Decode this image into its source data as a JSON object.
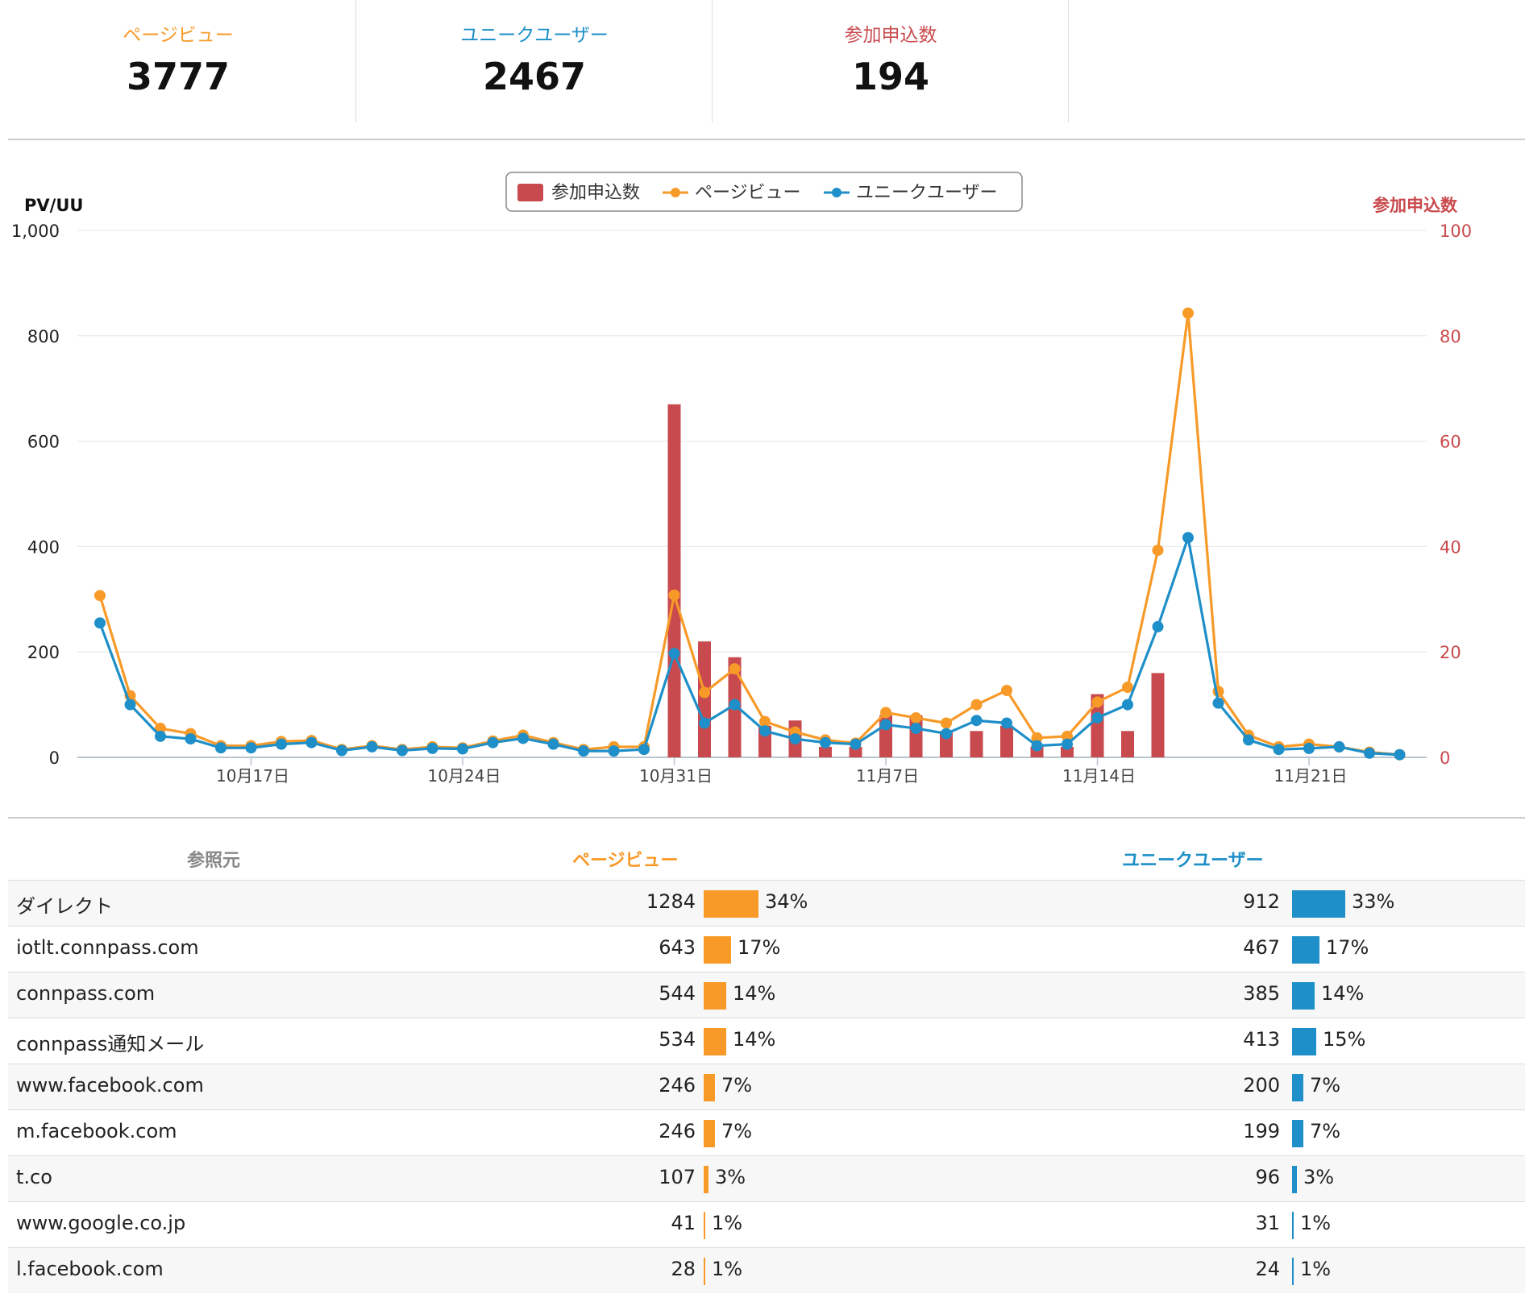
{
  "colors": {
    "pv": "#f79a28",
    "uu": "#1e8fc8",
    "entry": "#c94a4e"
  },
  "stats": [
    {
      "label": "ページビュー",
      "value": "3777",
      "color": "#f79a28"
    },
    {
      "label": "ユニークユーザー",
      "value": "2467",
      "color": "#1e8fc8"
    },
    {
      "label": "参加申込数",
      "value": "194",
      "color": "#c94a4e"
    }
  ],
  "chart_data": {
    "type": "line",
    "left_axis_title": "PV/UU",
    "right_axis_title": "参加申込数",
    "left_ylim": [
      0,
      1000
    ],
    "right_ylim": [
      0,
      100
    ],
    "left_ticks": [
      "0",
      "200",
      "400",
      "600",
      "800",
      "1,000"
    ],
    "right_ticks": [
      "0",
      "20",
      "40",
      "60",
      "80",
      "100"
    ],
    "x_tick_labels": [
      "10月17日",
      "10月24日",
      "10月31日",
      "11月7日",
      "11月14日",
      "11月21日"
    ],
    "x_tick_index": [
      5,
      12,
      19,
      26,
      33,
      40
    ],
    "legend_position": "top-center",
    "grid": true,
    "series": [
      {
        "name": "参加申込数",
        "kind": "bar",
        "axis": "right",
        "values": [
          0,
          0,
          0,
          0,
          0,
          0,
          0,
          0,
          0,
          0,
          0,
          0,
          0,
          0,
          0,
          0,
          0,
          0,
          0,
          67,
          22,
          19,
          6,
          7,
          2,
          2,
          8,
          8,
          5,
          5,
          6,
          2,
          2,
          12,
          5,
          16,
          0,
          0,
          0,
          0,
          0,
          0,
          0,
          0
        ]
      },
      {
        "name": "ページビュー",
        "kind": "line",
        "axis": "left",
        "values": [
          307,
          117,
          55,
          45,
          22,
          22,
          30,
          32,
          15,
          22,
          15,
          20,
          18,
          31,
          42,
          28,
          15,
          20,
          20,
          308,
          123,
          168,
          68,
          48,
          33,
          27,
          85,
          75,
          65,
          100,
          127,
          37,
          40,
          105,
          133,
          393,
          843,
          125,
          42,
          20,
          25,
          20,
          10,
          5
        ]
      },
      {
        "name": "ユニークユーザー",
        "kind": "line",
        "axis": "left",
        "values": [
          255,
          100,
          40,
          35,
          18,
          18,
          25,
          28,
          13,
          20,
          13,
          17,
          16,
          28,
          36,
          25,
          12,
          12,
          15,
          197,
          65,
          100,
          50,
          35,
          28,
          25,
          62,
          55,
          45,
          70,
          65,
          22,
          25,
          75,
          100,
          248,
          417,
          103,
          33,
          15,
          17,
          20,
          8,
          5
        ]
      }
    ]
  },
  "table": {
    "headers": {
      "source": "参照元",
      "pv": "ページビュー",
      "uu": "ユニークユーザー"
    },
    "rows": [
      {
        "source": "ダイレクト",
        "pv": "1284",
        "pv_pct": "34%",
        "pv_frac": 0.34,
        "uu": "912",
        "uu_pct": "33%",
        "uu_frac": 0.33
      },
      {
        "source": "iotlt.connpass.com",
        "pv": "643",
        "pv_pct": "17%",
        "pv_frac": 0.17,
        "uu": "467",
        "uu_pct": "17%",
        "uu_frac": 0.17
      },
      {
        "source": "connpass.com",
        "pv": "544",
        "pv_pct": "14%",
        "pv_frac": 0.14,
        "uu": "385",
        "uu_pct": "14%",
        "uu_frac": 0.14
      },
      {
        "source": "connpass通知メール",
        "pv": "534",
        "pv_pct": "14%",
        "pv_frac": 0.14,
        "uu": "413",
        "uu_pct": "15%",
        "uu_frac": 0.15
      },
      {
        "source": "www.facebook.com",
        "pv": "246",
        "pv_pct": "7%",
        "pv_frac": 0.07,
        "uu": "200",
        "uu_pct": "7%",
        "uu_frac": 0.07
      },
      {
        "source": "m.facebook.com",
        "pv": "246",
        "pv_pct": "7%",
        "pv_frac": 0.07,
        "uu": "199",
        "uu_pct": "7%",
        "uu_frac": 0.07
      },
      {
        "source": "t.co",
        "pv": "107",
        "pv_pct": "3%",
        "pv_frac": 0.03,
        "uu": "96",
        "uu_pct": "3%",
        "uu_frac": 0.03
      },
      {
        "source": "www.google.co.jp",
        "pv": "41",
        "pv_pct": "1%",
        "pv_frac": 0.01,
        "uu": "31",
        "uu_pct": "1%",
        "uu_frac": 0.01
      },
      {
        "source": "l.facebook.com",
        "pv": "28",
        "pv_pct": "1%",
        "pv_frac": 0.01,
        "uu": "24",
        "uu_pct": "1%",
        "uu_frac": 0.01
      }
    ]
  }
}
